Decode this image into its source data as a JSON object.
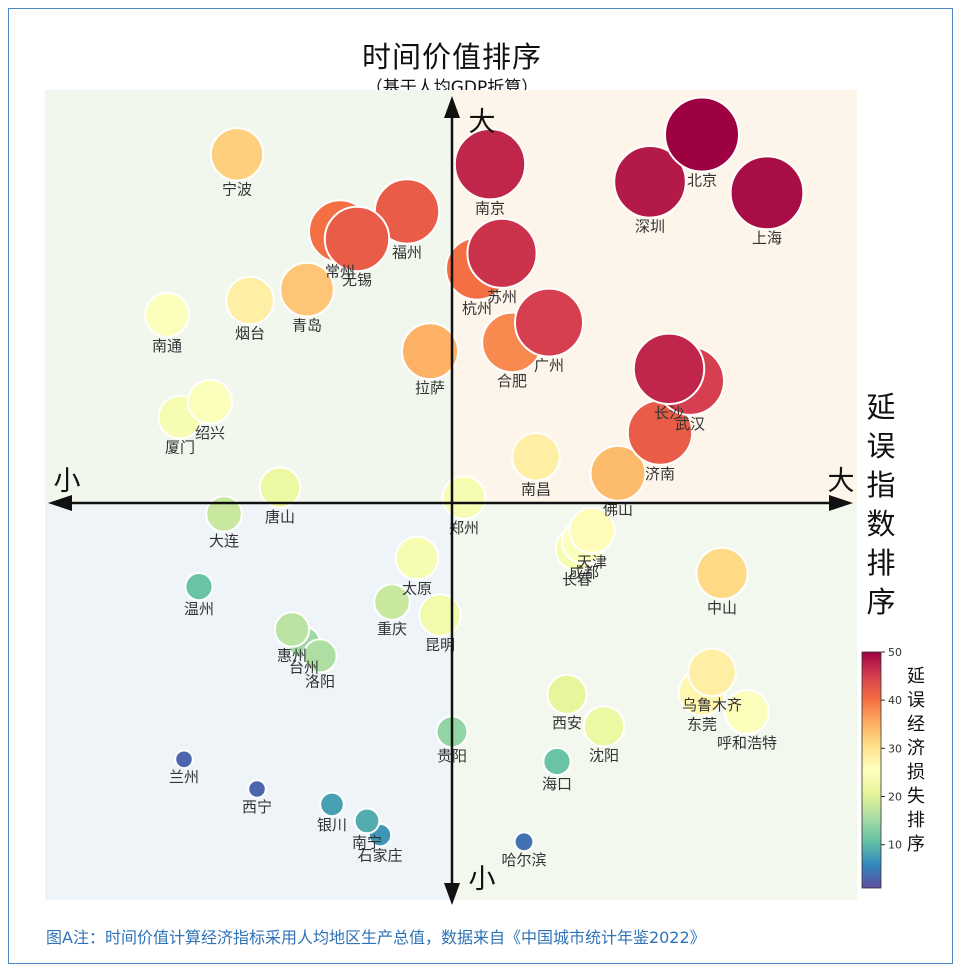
{
  "chart_data": {
    "type": "scatter",
    "title": "时间价值排序",
    "subtitle": "（基于人均GDP折算）",
    "x_axis": {
      "label": "延误指数排序",
      "low": "小",
      "high": "大"
    },
    "y_axis": {
      "low": "小",
      "high": "大"
    },
    "colorbar": {
      "label": "延误经济损失排序",
      "ticks": [
        10,
        20,
        30,
        40,
        50
      ],
      "range": [
        1,
        50
      ],
      "colormap": "Spectral_r"
    },
    "quadrant_colors": {
      "top_left": "#f2f7ee",
      "top_right": "#fdf5ea",
      "bottom_left": "#eff4f9",
      "bottom_right": "#f3f8ee"
    },
    "grid": false,
    "points": [
      {
        "city": "北京",
        "x": 2.5,
        "y": 3.35,
        "loss": 50
      },
      {
        "city": "深圳",
        "x": 1.98,
        "y": 2.92,
        "loss": 48
      },
      {
        "city": "上海",
        "x": 3.15,
        "y": 2.82,
        "loss": 49
      },
      {
        "city": "南京",
        "x": 0.38,
        "y": 3.08,
        "loss": 47
      },
      {
        "city": "苏州",
        "x": 0.5,
        "y": 2.27,
        "loss": 46
      },
      {
        "city": "杭州",
        "x": 0.25,
        "y": 2.13,
        "loss": 40
      },
      {
        "city": "广州",
        "x": 0.97,
        "y": 1.64,
        "loss": 45
      },
      {
        "city": "合肥",
        "x": 0.6,
        "y": 1.46,
        "loss": 38
      },
      {
        "city": "长沙",
        "x": 2.17,
        "y": 1.22,
        "loss": 47
      },
      {
        "city": "武汉",
        "x": 2.38,
        "y": 1.11,
        "loss": 45
      },
      {
        "city": "济南",
        "x": 2.08,
        "y": 0.64,
        "loss": 42
      },
      {
        "city": "佛山",
        "x": 1.66,
        "y": 0.27,
        "loss": 34
      },
      {
        "city": "南昌",
        "x": 0.84,
        "y": 0.42,
        "loss": 28
      },
      {
        "city": "天津",
        "x": 1.4,
        "y": -0.25,
        "loss": 26
      },
      {
        "city": "成都",
        "x": 1.32,
        "y": -0.35,
        "loss": 25
      },
      {
        "city": "长春",
        "x": 1.25,
        "y": -0.42,
        "loss": 24
      },
      {
        "city": "中山",
        "x": 2.7,
        "y": -0.64,
        "loss": 31
      },
      {
        "city": "乌鲁木齐",
        "x": 2.6,
        "y": -1.54,
        "loss": 28
      },
      {
        "city": "东莞",
        "x": 2.5,
        "y": -1.72,
        "loss": 27
      },
      {
        "city": "呼和浩特",
        "x": 2.95,
        "y": -1.9,
        "loss": 25
      },
      {
        "city": "西安",
        "x": 1.15,
        "y": -1.74,
        "loss": 21
      },
      {
        "city": "沈阳",
        "x": 1.52,
        "y": -2.03,
        "loss": 22
      },
      {
        "city": "海口",
        "x": 1.05,
        "y": -2.35,
        "loss": 11
      },
      {
        "city": "哈尔滨",
        "x": 0.72,
        "y": -3.08,
        "loss": 4
      },
      {
        "city": "郑州",
        "x": 0.12,
        "y": 0.05,
        "loss": 24
      },
      {
        "city": "贵阳",
        "x": 0.0,
        "y": -2.08,
        "loss": 14
      },
      {
        "city": "拉萨",
        "x": -0.22,
        "y": 1.38,
        "loss": 35
      },
      {
        "city": "福州",
        "x": -0.45,
        "y": 2.65,
        "loss": 42
      },
      {
        "city": "常州",
        "x": -1.12,
        "y": 2.47,
        "loss": 40
      },
      {
        "city": "无锡",
        "x": -0.95,
        "y": 2.4,
        "loss": 42
      },
      {
        "city": "青岛",
        "x": -1.45,
        "y": 1.94,
        "loss": 33
      },
      {
        "city": "宁波",
        "x": -2.15,
        "y": 3.17,
        "loss": 32
      },
      {
        "city": "烟台",
        "x": -2.02,
        "y": 1.84,
        "loss": 28
      },
      {
        "city": "南通",
        "x": -2.85,
        "y": 1.71,
        "loss": 25
      },
      {
        "city": "绍兴",
        "x": -2.42,
        "y": 0.92,
        "loss": 25
      },
      {
        "city": "厦门",
        "x": -2.72,
        "y": 0.78,
        "loss": 24
      },
      {
        "city": "唐山",
        "x": -1.72,
        "y": 0.14,
        "loss": 22
      },
      {
        "city": "大连",
        "x": -2.28,
        "y": -0.1,
        "loss": 18
      },
      {
        "city": "太原",
        "x": -0.35,
        "y": -0.5,
        "loss": 24
      },
      {
        "city": "昆明",
        "x": -0.12,
        "y": -1.02,
        "loss": 23
      },
      {
        "city": "重庆",
        "x": -0.6,
        "y": -0.9,
        "loss": 18
      },
      {
        "city": "温州",
        "x": -2.53,
        "y": -0.76,
        "loss": 11
      },
      {
        "city": "惠州",
        "x": -1.6,
        "y": -1.15,
        "loss": 17
      },
      {
        "city": "台州",
        "x": -1.48,
        "y": -1.27,
        "loss": 15
      },
      {
        "city": "洛阳",
        "x": -1.32,
        "y": -1.39,
        "loss": 16
      },
      {
        "city": "兰州",
        "x": -2.68,
        "y": -2.33,
        "loss": 3
      },
      {
        "city": "西宁",
        "x": -1.95,
        "y": -2.6,
        "loss": 3
      },
      {
        "city": "银川",
        "x": -1.2,
        "y": -2.74,
        "loss": 8
      },
      {
        "city": "南宁",
        "x": -0.85,
        "y": -2.89,
        "loss": 9
      },
      {
        "city": "石家庄",
        "x": -0.72,
        "y": -3.02,
        "loss": 7
      }
    ]
  },
  "caption": "图A注：时间价值计算经济指标采用人均地区生产总值，数据来自《中国城市统计年鉴2022》"
}
